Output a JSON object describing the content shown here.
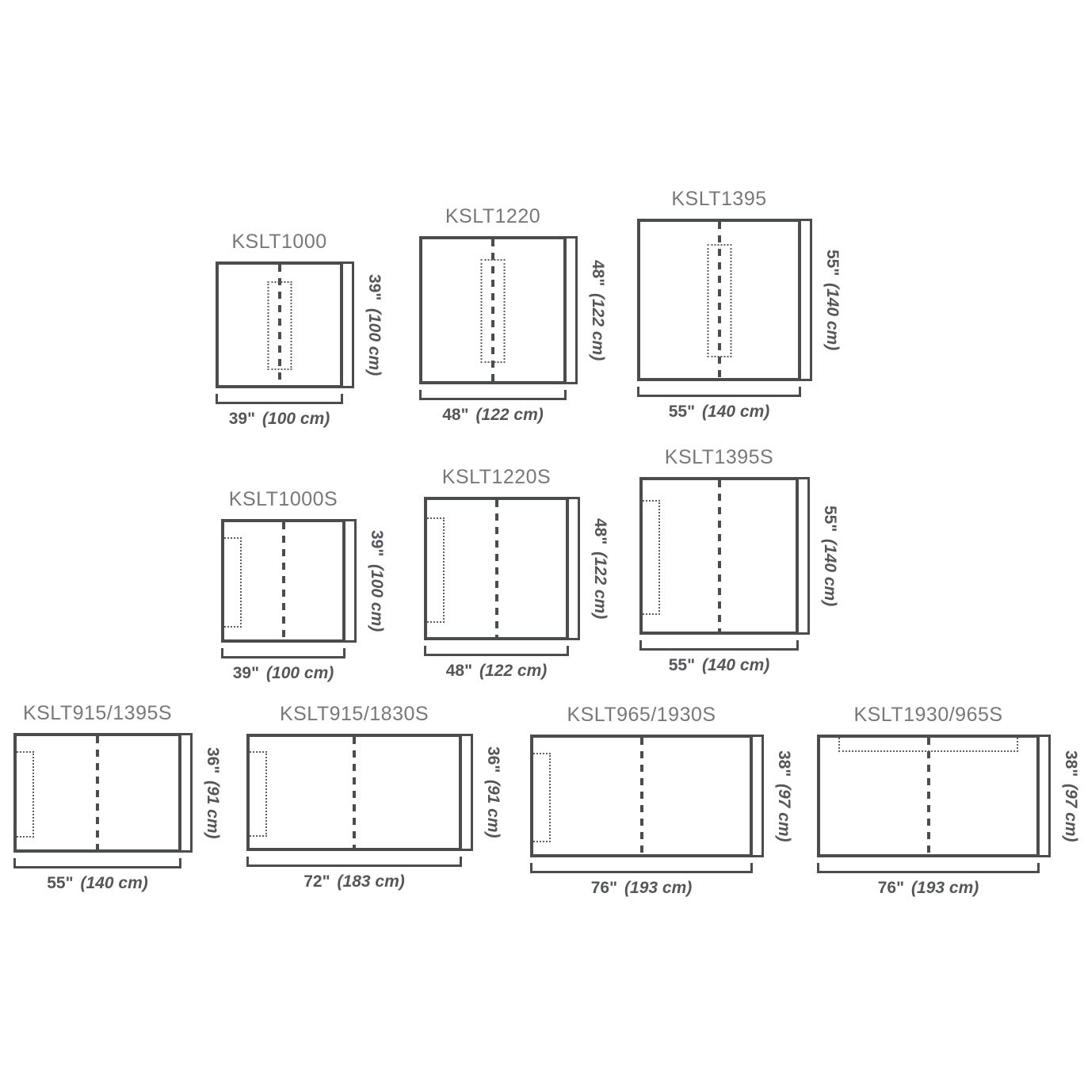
{
  "colors": {
    "background": "#ffffff",
    "outline": "#4b4c4e",
    "dimension_text": "#55565a",
    "title_text": "#77787b"
  },
  "diagrams": [
    {
      "model": "KSLT1000",
      "width_in": "39\"",
      "width_cm": "(100 cm)",
      "height_in": "39\"",
      "height_cm": "(100 cm)",
      "inset_position": "center"
    },
    {
      "model": "KSLT1220",
      "width_in": "48\"",
      "width_cm": "(122 cm)",
      "height_in": "48\"",
      "height_cm": "(122 cm)",
      "inset_position": "center"
    },
    {
      "model": "KSLT1395",
      "width_in": "55\"",
      "width_cm": "(140 cm)",
      "height_in": "55\"",
      "height_cm": "(140 cm)",
      "inset_position": "center"
    },
    {
      "model": "KSLT1000S",
      "width_in": "39\"",
      "width_cm": "(100 cm)",
      "height_in": "39\"",
      "height_cm": "(100 cm)",
      "inset_position": "left"
    },
    {
      "model": "KSLT1220S",
      "width_in": "48\"",
      "width_cm": "(122 cm)",
      "height_in": "48\"",
      "height_cm": "(122 cm)",
      "inset_position": "left"
    },
    {
      "model": "KSLT1395S",
      "width_in": "55\"",
      "width_cm": "(140 cm)",
      "height_in": "55\"",
      "height_cm": "(140 cm)",
      "inset_position": "left"
    },
    {
      "model": "KSLT915/1395S",
      "width_in": "55\"",
      "width_cm": "(140 cm)",
      "height_in": "36\"",
      "height_cm": "(91 cm)",
      "inset_position": "left"
    },
    {
      "model": "KSLT915/1830S",
      "width_in": "72\"",
      "width_cm": "(183 cm)",
      "height_in": "36\"",
      "height_cm": "(91 cm)",
      "inset_position": "left"
    },
    {
      "model": "KSLT965/1930S",
      "width_in": "76\"",
      "width_cm": "(193 cm)",
      "height_in": "38\"",
      "height_cm": "(97 cm)",
      "inset_position": "left"
    },
    {
      "model": "KSLT1930/965S",
      "width_in": "76\"",
      "width_cm": "(193 cm)",
      "height_in": "38\"",
      "height_cm": "(97 cm)",
      "inset_position": "top"
    }
  ]
}
